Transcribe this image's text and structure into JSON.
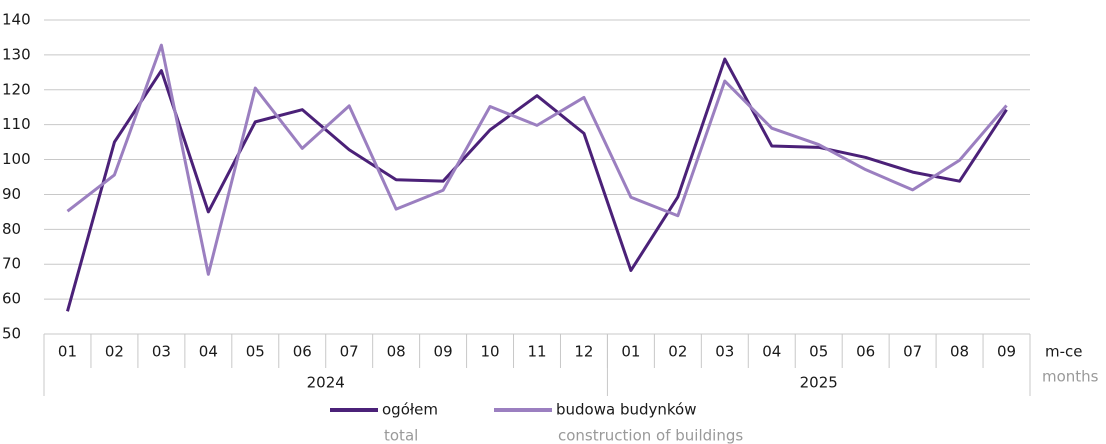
{
  "chart_data": {
    "type": "line",
    "categories": [
      "01",
      "02",
      "03",
      "04",
      "05",
      "06",
      "07",
      "08",
      "09",
      "10",
      "11",
      "12",
      "01",
      "02",
      "03",
      "04",
      "05",
      "06",
      "07",
      "08",
      "09"
    ],
    "x_groups": [
      {
        "label": "2024",
        "count": 12
      },
      {
        "label": "2025",
        "count": 9
      }
    ],
    "x_label": "m-ce",
    "x_label_en": "months",
    "series": [
      {
        "name": "ogółem",
        "name_en": "total",
        "color": "#4b2178",
        "values": [
          56.5,
          105,
          125.5,
          85,
          110.8,
          114.3,
          102.8,
          94.2,
          93.8,
          108.5,
          118.3,
          107.5,
          68.2,
          89.3,
          128.8,
          103.9,
          103.5,
          100.6,
          96.4,
          93.8,
          114.3
        ]
      },
      {
        "name": "budowa budynków",
        "name_en": "construction of buildings",
        "color": "#9b7fc0",
        "values": [
          85.2,
          95.6,
          132.8,
          67.1,
          120.5,
          103.2,
          115.4,
          85.8,
          91.2,
          115.2,
          109.8,
          117.8,
          89.2,
          83.9,
          122.5,
          109,
          104.3,
          97.1,
          91.3,
          99.8,
          115.5
        ]
      }
    ],
    "ylim": [
      50,
      140
    ],
    "yticks": [
      50,
      60,
      70,
      80,
      90,
      100,
      110,
      120,
      130,
      140
    ],
    "grid": true
  }
}
